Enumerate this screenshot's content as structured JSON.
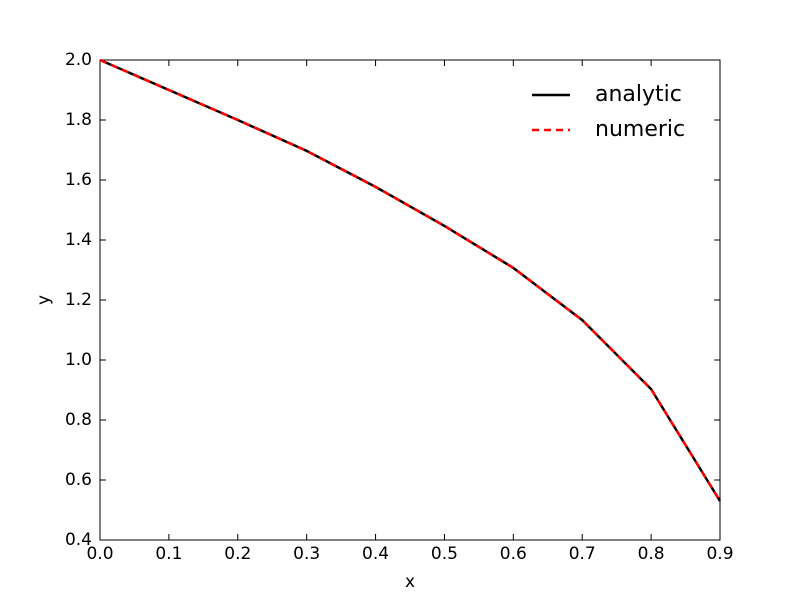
{
  "chart_data": {
    "type": "line",
    "x_label": "x",
    "y_label": "y",
    "x": [
      0.0,
      0.1,
      0.2,
      0.3,
      0.4,
      0.5,
      0.6,
      0.7,
      0.8,
      0.9
    ],
    "series": [
      {
        "name": "analytic",
        "color": "#000000",
        "dash": "solid",
        "values": [
          2.0,
          1.9,
          1.8,
          1.697,
          1.577,
          1.447,
          1.307,
          1.133,
          0.903,
          0.53
        ]
      },
      {
        "name": "numeric",
        "color": "#ff0000",
        "dash": "dashed",
        "values": [
          2.0,
          1.9,
          1.8,
          1.697,
          1.577,
          1.447,
          1.307,
          1.133,
          0.903,
          0.53
        ]
      }
    ],
    "xlim": [
      0.0,
      0.9
    ],
    "xticks": [
      {
        "value": 0,
        "label": "0.0"
      },
      0.1,
      0.2,
      0.3,
      0.4,
      0.5,
      0.6,
      0.7,
      0.8,
      0.9
    ],
    "ylim": [
      0.4,
      2.0
    ],
    "yticks": [
      0.4,
      0.6,
      0.8,
      {
        "value": 1,
        "label": "1.0"
      },
      1.2,
      1.4,
      1.6,
      1.8,
      {
        "value": 2,
        "label": "2.0"
      }
    ],
    "grid": false,
    "legend": "upper-right"
  }
}
